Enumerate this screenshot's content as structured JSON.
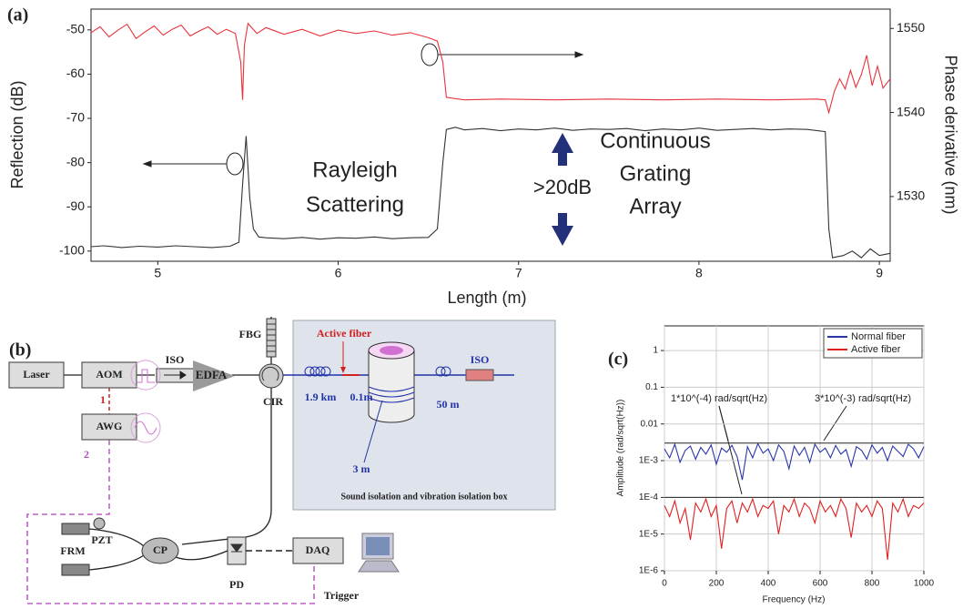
{
  "chart_data": [
    {
      "type": "line",
      "panel_label": "(a)",
      "xlabel": "Length (m)",
      "ylabel": "Reflection (dB)",
      "y2label": "Phase derivative (nm)",
      "xlim": [
        4.63,
        9.06
      ],
      "xticks": [
        5,
        6,
        7,
        8,
        9
      ],
      "ylim": [
        -102.3,
        -45.3
      ],
      "yticks": [
        -50,
        -60,
        -70,
        -80,
        -90,
        -100
      ],
      "y2lim": [
        1522.3,
        1552.3
      ],
      "y2ticks": [
        1530,
        1540,
        1550
      ],
      "grid": false,
      "annotations": [
        "Rayleigh",
        "Scattering",
        ">20dB",
        "Continuous",
        "Grating",
        "Array"
      ],
      "series": [
        {
          "color": "#333333",
          "x": [
            4.63,
            4.7,
            4.8,
            4.9,
            5.0,
            5.1,
            5.2,
            5.3,
            5.4,
            5.45,
            5.47,
            5.49,
            5.51,
            5.53,
            5.56,
            5.6,
            5.7,
            5.8,
            5.9,
            6.0,
            6.1,
            6.2,
            6.3,
            6.4,
            6.5,
            6.55,
            6.58,
            6.6,
            6.65,
            6.7,
            6.8,
            6.9,
            7.0,
            7.1,
            7.2,
            7.3,
            7.4,
            7.5,
            7.6,
            7.7,
            7.8,
            7.9,
            8.0,
            8.1,
            8.2,
            8.3,
            8.4,
            8.5,
            8.6,
            8.7,
            8.72,
            8.74,
            8.8,
            8.85,
            8.9,
            8.95,
            9.0,
            9.06
          ],
          "values": [
            -99,
            -98.8,
            -99.2,
            -98.9,
            -99.1,
            -98.8,
            -99,
            -99.2,
            -98.9,
            -98,
            -85,
            -74,
            -88,
            -95,
            -96.8,
            -97,
            -97.2,
            -96.9,
            -97.3,
            -97,
            -97.1,
            -96.8,
            -97.2,
            -97,
            -96.9,
            -95,
            -80,
            -72.5,
            -72,
            -72.6,
            -72.3,
            -72.8,
            -72.4,
            -72.6,
            -72.2,
            -72.7,
            -72.4,
            -72.5,
            -72.3,
            -72.8,
            -72.4,
            -72.6,
            -72.2,
            -72.7,
            -72.5,
            -72.3,
            -72.6,
            -72.4,
            -72.5,
            -73,
            -95,
            -101.5,
            -101,
            -100,
            -101.5,
            -99.5,
            -101,
            -100.5
          ]
        },
        {
          "color": "#e8323c",
          "axis": "y2",
          "x": [
            4.63,
            4.68,
            4.73,
            4.78,
            4.83,
            4.88,
            4.93,
            4.98,
            5.03,
            5.08,
            5.13,
            5.18,
            5.23,
            5.28,
            5.33,
            5.38,
            5.43,
            5.46,
            5.47,
            5.48,
            5.5,
            5.55,
            5.6,
            5.7,
            5.8,
            5.9,
            6.0,
            6.1,
            6.2,
            6.3,
            6.4,
            6.5,
            6.55,
            6.58,
            6.6,
            6.7,
            6.9,
            7.2,
            7.5,
            7.8,
            8.1,
            8.4,
            8.65,
            8.7,
            8.72,
            8.75,
            8.78,
            8.81,
            8.84,
            8.87,
            8.9,
            8.93,
            8.96,
            8.99,
            9.02,
            9.06
          ],
          "values": [
            1549.5,
            1550.2,
            1549,
            1549.8,
            1550.5,
            1548.8,
            1549.6,
            1550.3,
            1549.2,
            1549.9,
            1550.4,
            1549.1,
            1549.7,
            1550.2,
            1549.3,
            1549.9,
            1549.4,
            1546,
            1541.5,
            1548,
            1550.6,
            1549.4,
            1550.1,
            1549.3,
            1549.9,
            1549.1,
            1549.8,
            1549.4,
            1549.7,
            1549.2,
            1549.5,
            1548.9,
            1548.5,
            1546,
            1541.8,
            1541.5,
            1541.6,
            1541.5,
            1541.6,
            1541.5,
            1541.6,
            1541.5,
            1541.6,
            1541.5,
            1540,
            1542.5,
            1544,
            1542.8,
            1545,
            1543,
            1544.5,
            1546.8,
            1543.2,
            1545.5,
            1542.9,
            1544
          ]
        }
      ]
    },
    {
      "type": "line",
      "panel_label": "(c)",
      "xlabel": "Frequency (Hz)",
      "ylabel": "Amplitude (rad/sqrt(Hz))",
      "xlim": [
        0,
        1000
      ],
      "xticks": [
        0,
        200,
        400,
        600,
        800,
        1000
      ],
      "ylim": [
        1e-06,
        4.7
      ],
      "log_y": true,
      "yticks": [
        {
          "value": 1e-06,
          "label": "1E-6"
        },
        {
          "value": 1e-05,
          "label": "1E-5"
        },
        {
          "value": 0.0001,
          "label": "1E-4"
        },
        {
          "value": 0.001,
          "label": "1E-3"
        },
        0.01,
        0.1,
        1
      ],
      "grid": true,
      "legend": "upper right",
      "hlines": [
        0.003,
        0.0001
      ],
      "annotations": [
        "1*10^(-4) rad/sqrt(Hz)",
        "3*10^(-3) rad/sqrt(Hz)"
      ],
      "x": [
        0,
        20,
        40,
        60,
        80,
        100,
        120,
        140,
        160,
        180,
        200,
        220,
        240,
        260,
        280,
        300,
        320,
        340,
        360,
        380,
        400,
        420,
        440,
        460,
        480,
        500,
        520,
        540,
        560,
        580,
        600,
        620,
        640,
        660,
        680,
        700,
        720,
        740,
        760,
        780,
        800,
        820,
        840,
        860,
        880,
        900,
        920,
        940,
        960,
        980,
        1000
      ],
      "series": [
        {
          "name": "Normal fiber",
          "color": "#2a35a8",
          "values": [
            0.0021,
            0.0012,
            0.0028,
            0.0009,
            0.0019,
            0.0025,
            0.0011,
            0.0023,
            0.0015,
            0.0027,
            0.0008,
            0.0022,
            0.0017,
            0.0026,
            0.0013,
            0.0003,
            0.0024,
            0.0012,
            0.0029,
            0.0016,
            0.0021,
            0.001,
            0.0027,
            0.0018,
            0.0006,
            0.0025,
            0.0014,
            0.0023,
            0.0009,
            0.0028,
            0.0017,
            0.0022,
            0.0012,
            0.0026,
            0.0015,
            0.002,
            0.0007,
            0.0024,
            0.0019,
            0.0011,
            0.0027,
            0.0016,
            0.0023,
            0.001,
            0.0025,
            0.0018,
            0.0013,
            0.0028,
            0.0021,
            0.0012,
            0.0024
          ]
        },
        {
          "name": "Active fiber",
          "color": "#e02020",
          "values": [
            6e-05,
            3e-05,
            8e-05,
            2e-05,
            5e-05,
            7e-06,
            7e-05,
            4e-05,
            9e-05,
            3e-05,
            6e-05,
            4e-06,
            5e-05,
            8e-05,
            2e-05,
            7e-05,
            4e-05,
            9e-05,
            3e-05,
            6e-05,
            5e-05,
            8e-05,
            1e-05,
            6e-05,
            4e-05,
            9e-05,
            3e-05,
            7e-05,
            5e-05,
            2e-05,
            8e-05,
            4e-05,
            6e-05,
            3e-05,
            9e-05,
            5e-05,
            8e-06,
            7e-05,
            4e-05,
            6e-05,
            3e-05,
            8e-05,
            5e-05,
            2e-06,
            7e-05,
            4e-05,
            9e-05,
            3e-05,
            6e-05,
            5e-05,
            7e-05
          ]
        }
      ]
    }
  ],
  "diagram": {
    "panel_label": "(b)",
    "laser": "Laser",
    "aom": "AOM",
    "iso": "ISO",
    "edfa": "EDFA",
    "cir": "CIR",
    "fbg": "FBG",
    "awg": "AWG",
    "port1": "1",
    "port2": "2",
    "pzt": "PZT",
    "frm": "FRM",
    "cp": "CP",
    "pd": "PD",
    "daq": "DAQ",
    "trigger": "Trigger",
    "active_fiber": "Active fiber",
    "len_1": "1.9 km",
    "len_2": "0.1m",
    "len_3": "3 m",
    "len_4": "50 m",
    "iso_2": "ISO",
    "box_caption": "Sound isolation and vibration isolation box"
  }
}
